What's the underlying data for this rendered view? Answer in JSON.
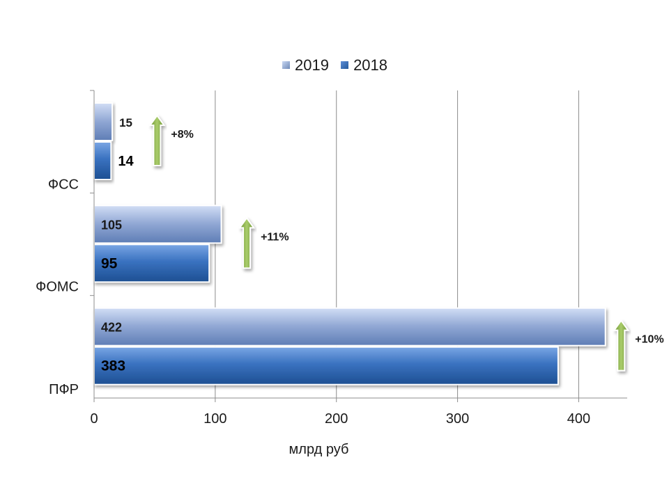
{
  "chart_data": {
    "type": "bar",
    "orientation": "horizontal",
    "categories": [
      "ФСС",
      "ФОМС",
      "ПФР"
    ],
    "series": [
      {
        "name": "2019",
        "values": [
          15,
          105,
          422
        ],
        "color": "#7d97c6"
      },
      {
        "name": "2018",
        "values": [
          14,
          95,
          383
        ],
        "color": "#2f64ad"
      }
    ],
    "xlabel": "млрд руб",
    "xlim": [
      0,
      440
    ],
    "xticks": [
      0,
      100,
      200,
      300,
      400
    ],
    "grid": true,
    "legend_position": "top-center",
    "annotations": [
      {
        "category": "ФСС",
        "text": "+8%",
        "at_value": 52
      },
      {
        "category": "ФОМС",
        "text": "+11%",
        "at_value": 126
      },
      {
        "category": "ПФР",
        "text": "+10%",
        "at_value": 435
      }
    ],
    "arrow_color": "#8db04a"
  }
}
